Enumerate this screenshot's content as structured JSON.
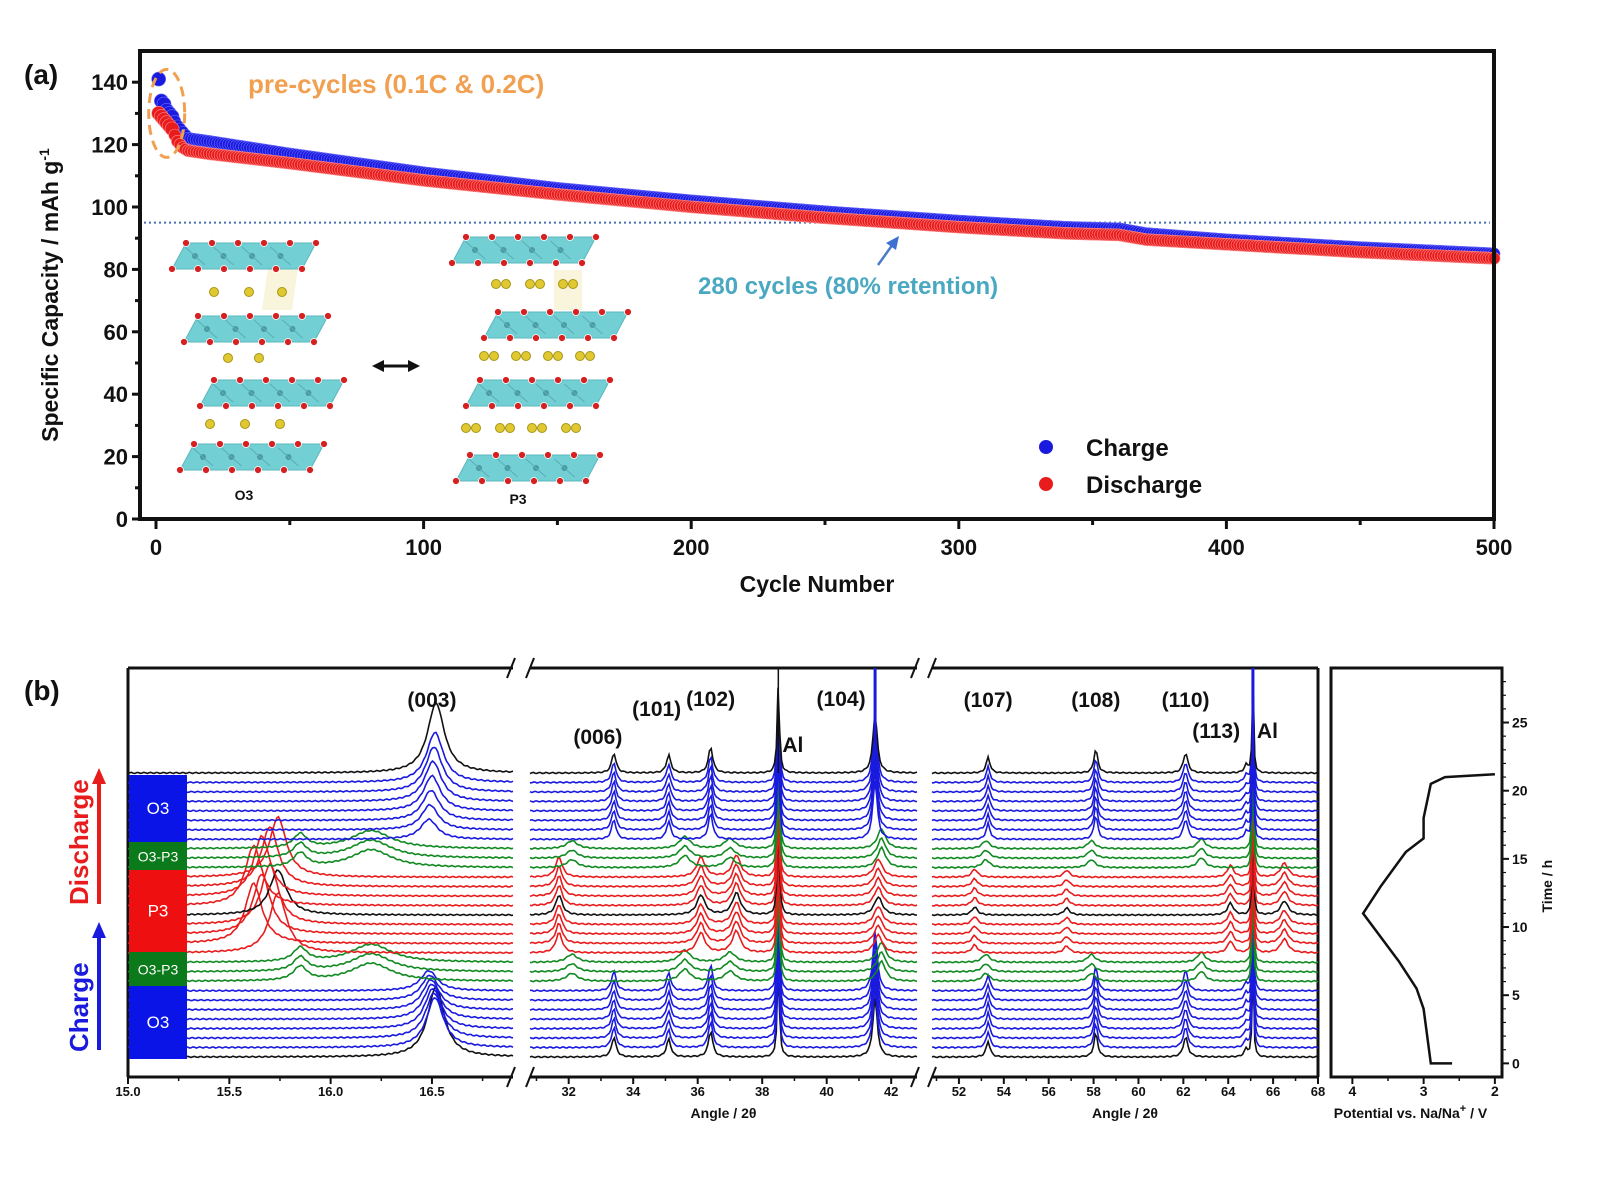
{
  "chart_data": [
    {
      "panel": "(a)",
      "type": "scatter",
      "title": "",
      "xlabel": "Cycle Number",
      "ylabel": "Specific Capacity / mAh g",
      "ylabel_superscript": "-1",
      "xlim": [
        0,
        500
      ],
      "ylim": [
        0,
        150
      ],
      "xticks": [
        0,
        100,
        200,
        300,
        400,
        500
      ],
      "yticks": [
        0,
        20,
        40,
        60,
        80,
        100,
        120,
        140
      ],
      "grid": false,
      "legend": {
        "position": "bottom-right",
        "entries": [
          {
            "name": "Charge",
            "color": "#1a1adf"
          },
          {
            "name": "Discharge",
            "color": "#e81c1c"
          }
        ]
      },
      "series": [
        {
          "name": "Charge",
          "color": "#1a1adf",
          "points": [
            [
              1,
              141
            ],
            [
              2,
              134
            ],
            [
              3,
              133
            ],
            [
              4,
              131
            ],
            [
              5,
              130
            ],
            [
              6,
              129
            ],
            [
              8,
              126
            ],
            [
              10,
              124
            ],
            [
              12,
              122
            ],
            [
              20,
              121
            ],
            [
              50,
              117
            ],
            [
              100,
              111
            ],
            [
              150,
              106
            ],
            [
              200,
              102
            ],
            [
              250,
              98.5
            ],
            [
              300,
              95.5
            ],
            [
              340,
              93.5
            ],
            [
              360,
              93
            ],
            [
              370,
              91.5
            ],
            [
              400,
              89.5
            ],
            [
              450,
              87
            ],
            [
              500,
              85
            ]
          ]
        },
        {
          "name": "Discharge",
          "color": "#e81c1c",
          "points": [
            [
              1,
              131
            ],
            [
              2,
              130
            ],
            [
              3,
              129
            ],
            [
              4,
              128
            ],
            [
              5,
              127
            ],
            [
              6,
              126
            ],
            [
              8,
              122
            ],
            [
              10,
              120
            ],
            [
              12,
              119
            ],
            [
              20,
              118
            ],
            [
              50,
              115
            ],
            [
              100,
              109.5
            ],
            [
              150,
              105
            ],
            [
              200,
              101
            ],
            [
              250,
              97.5
            ],
            [
              300,
              94.5
            ],
            [
              340,
              92.5
            ],
            [
              360,
              92
            ],
            [
              370,
              90.5
            ],
            [
              400,
              89
            ],
            [
              450,
              86.5
            ],
            [
              500,
              84.5
            ]
          ]
        }
      ],
      "reference_line": {
        "y": 95,
        "style": "dotted",
        "color": "#4a6fb5"
      },
      "annotations": [
        {
          "text": "pre-cycles (0.1C & 0.2C)",
          "color": "#f0a050"
        },
        {
          "text": "280 cycles (80% retention)",
          "color": "#4aa8c0",
          "arrow_to_x": 280
        }
      ],
      "inset": {
        "structures": [
          {
            "label": "O3",
            "layers": 4
          },
          {
            "label": "P3",
            "layers": 4
          }
        ],
        "arrow": "double-headed"
      }
    },
    {
      "panel": "(b)",
      "type": "line",
      "title": "",
      "description": "In-situ XRD waterfall plot with broken x-axis and potential-time profile",
      "subplots": [
        {
          "name": "xrd-low",
          "xlim": [
            15.0,
            16.9
          ],
          "xticks": [
            "15.0",
            "15.5",
            "16.0",
            "16.5"
          ],
          "xlabel": "",
          "peak_labels": [
            {
              "label": "(003)",
              "x": 16.5
            }
          ]
        },
        {
          "name": "xrd-mid",
          "xlim": [
            30.8,
            42.8
          ],
          "xticks": [
            "32",
            "34",
            "36",
            "38",
            "40",
            "42"
          ],
          "xlabel": "Angle / 2θ",
          "peak_labels": [
            {
              "label": "(006)",
              "x": 33.4
            },
            {
              "label": "(101)",
              "x": 35.1
            },
            {
              "label": "(102)",
              "x": 36.4
            },
            {
              "label": "Al",
              "x": 38.5
            },
            {
              "label": "(104)",
              "x": 41.5
            }
          ]
        },
        {
          "name": "xrd-high",
          "xlim": [
            50.8,
            68
          ],
          "xticks": [
            "52",
            "54",
            "56",
            "58",
            "60",
            "62",
            "64",
            "66",
            "68"
          ],
          "xlabel": "Angle / 2θ",
          "peak_labels": [
            {
              "label": "(107)",
              "x": 53.3
            },
            {
              "label": "(108)",
              "x": 58.1
            },
            {
              "label": "(110)",
              "x": 62.1
            },
            {
              "label": "(113)",
              "x": 64.8
            },
            {
              "label": "Al",
              "x": 65.1
            }
          ]
        },
        {
          "name": "potential-profile",
          "xlim": [
            4.3,
            1.9
          ],
          "ylim": [
            -1,
            29
          ],
          "xticks": [
            "4",
            "3",
            "2"
          ],
          "yticks": [
            "0",
            "5",
            "10",
            "15",
            "20",
            "25"
          ],
          "xlabel": "Potential  vs. Na/Na",
          "xlabel_superscript": "+",
          "xlabel_suffix": " / V",
          "ylabel": "Time / h",
          "points": [
            [
              2.6,
              0
            ],
            [
              2.9,
              0
            ],
            [
              2.95,
              2
            ],
            [
              3.0,
              4
            ],
            [
              3.1,
              5.5
            ],
            [
              3.35,
              7.5
            ],
            [
              3.85,
              11
            ],
            [
              3.6,
              13
            ],
            [
              3.25,
              15.5
            ],
            [
              3.0,
              16.5
            ],
            [
              3.0,
              18
            ],
            [
              2.9,
              20.5
            ],
            [
              2.7,
              21
            ],
            [
              2.0,
              21.2
            ]
          ]
        }
      ],
      "phase_labels": [
        {
          "label": "O3",
          "color": "#0a14e6",
          "scans": 8
        },
        {
          "label": "O3-P3",
          "color": "#0a7a1a",
          "scans": 3
        },
        {
          "label": "P3",
          "color": "#ee1010",
          "scans": 8
        },
        {
          "label": "O3-P3",
          "color": "#0a7a1a",
          "scans": 3
        },
        {
          "label": "O3",
          "color": "#0a14e6",
          "scans": 8
        }
      ],
      "direction_labels": [
        {
          "label": "Charge",
          "color": "#1a1adf"
        },
        {
          "label": "Discharge",
          "color": "#e81c1c"
        }
      ],
      "scan_sequence": [
        "black",
        "blue",
        "blue",
        "blue",
        "blue",
        "blue",
        "blue",
        "blue",
        "green",
        "green",
        "green",
        "red",
        "red",
        "red",
        "red",
        "black",
        "red",
        "red",
        "red",
        "red",
        "green",
        "green",
        "green",
        "blue",
        "blue",
        "blue",
        "blue",
        "blue",
        "blue",
        "blue",
        "black"
      ],
      "scan_colors": {
        "black": "#111111",
        "blue": "#1a1adf",
        "green": "#118a22",
        "red": "#e81c1c"
      },
      "break_marks": "//"
    }
  ]
}
